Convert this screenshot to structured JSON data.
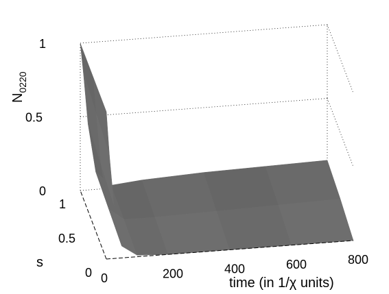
{
  "chart_data": {
    "type": "surface",
    "title": "",
    "xlabel": "time (in 1/χ units)",
    "ylabel": "s",
    "zlabel": {
      "base": "N",
      "subscript": "0220"
    },
    "xlim": [
      0,
      800
    ],
    "ylim": [
      0,
      1
    ],
    "zlim": [
      0,
      1
    ],
    "x_ticks": [
      "0",
      "200",
      "400",
      "600",
      "800"
    ],
    "y_ticks": [
      "0",
      "0.5",
      "1"
    ],
    "z_ticks": [
      "0",
      "0.5",
      "1"
    ],
    "grid": true,
    "surface_color": "#6e6e6e",
    "series": [
      {
        "s": 1.0,
        "time": [
          0,
          10,
          25,
          50,
          100,
          200,
          400,
          600,
          800
        ],
        "N": [
          1.0,
          0.8,
          0.45,
          0.12,
          0.02,
          0.04,
          0.06,
          0.07,
          0.08
        ]
      },
      {
        "s": 0.5,
        "time": [
          0,
          10,
          25,
          50,
          100,
          200,
          400,
          600,
          800
        ],
        "N": [
          1.0,
          0.75,
          0.4,
          0.1,
          0.02,
          0.02,
          0.03,
          0.04,
          0.05
        ]
      },
      {
        "s": 0.0,
        "time": [
          0,
          10,
          25,
          50,
          100,
          200,
          400,
          600,
          800
        ],
        "N": [
          1.0,
          0.7,
          0.35,
          0.08,
          0.01,
          0.0,
          0.0,
          0.0,
          0.0
        ]
      }
    ]
  }
}
